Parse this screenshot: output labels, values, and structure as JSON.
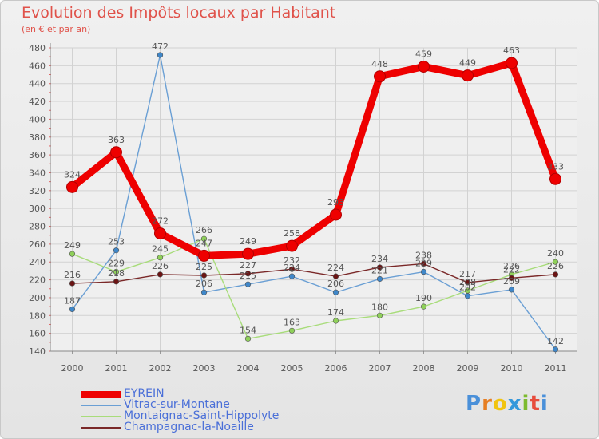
{
  "title": "Evolution des Impôts locaux par Habitant",
  "subtitle": "(en € et par an)",
  "brand": {
    "text": "Proxiti",
    "letter_colors": [
      "#4a90d9",
      "#e67e22",
      "#f1c40f",
      "#3498db",
      "#7dbb2f",
      "#e74c3c",
      "#4a90d9"
    ]
  },
  "chart_data": {
    "type": "line",
    "x": [
      "2000",
      "2001",
      "2002",
      "2003",
      "2004",
      "2005",
      "2006",
      "2007",
      "2008",
      "2009",
      "2010",
      "2011"
    ],
    "ylim": [
      140,
      480
    ],
    "yticks": [
      140,
      160,
      180,
      200,
      220,
      240,
      260,
      280,
      300,
      320,
      340,
      360,
      380,
      400,
      420,
      440,
      460,
      480
    ],
    "grid": true,
    "series": [
      {
        "name": "EYREIN",
        "color": "#ee0000",
        "emphasis": true,
        "values": [
          324,
          363,
          272,
          247,
          249,
          258,
          293,
          448,
          459,
          449,
          463,
          333
        ]
      },
      {
        "name": "Vitrac-sur-Montane",
        "color": "#6a9fd4",
        "marker": "#3f87c9",
        "values": [
          187,
          253,
          472,
          206,
          215,
          224,
          206,
          221,
          229,
          202,
          209,
          142
        ]
      },
      {
        "name": "Montaignac-Saint-Hippolyte",
        "color": "#a8dc7a",
        "marker": "#8fd05a",
        "values": [
          249,
          229,
          245,
          266,
          154,
          163,
          174,
          180,
          190,
          208,
          226,
          240
        ]
      },
      {
        "name": "Champagnac-la-Noaille",
        "color": "#7a2828",
        "marker": "#6b1414",
        "values": [
          216,
          218,
          226,
          225,
          227,
          232,
          224,
          234,
          238,
          217,
          222,
          226
        ]
      }
    ]
  }
}
